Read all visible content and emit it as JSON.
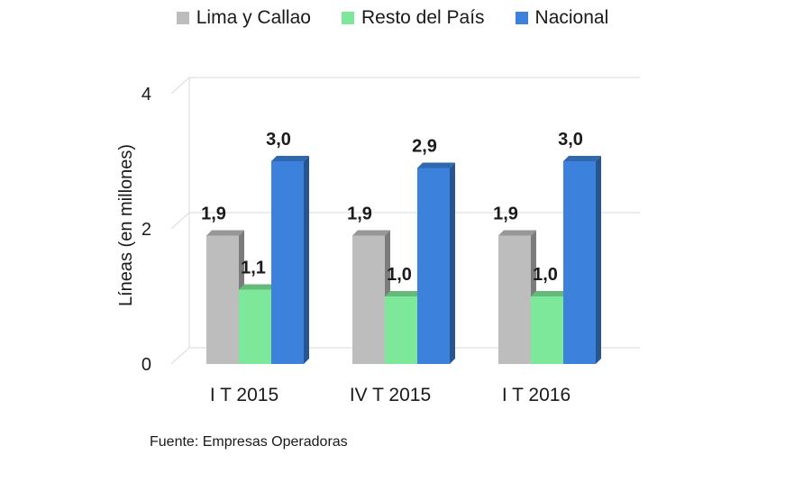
{
  "chart_data": {
    "type": "bar",
    "categories": [
      "I T 2015",
      "IV T 2015",
      "I T 2016"
    ],
    "series": [
      {
        "name": "Lima y Callao",
        "color": "#bdbdbd",
        "values": [
          1.9,
          1.9,
          1.9
        ],
        "labels": [
          "1,9",
          "1,9",
          "1,9"
        ]
      },
      {
        "name": "Resto del País",
        "color": "#7ee89a",
        "values": [
          1.1,
          1.0,
          1.0
        ],
        "labels": [
          "1,1",
          "1,0",
          "1,0"
        ]
      },
      {
        "name": "Nacional",
        "color": "#3c82dc",
        "values": [
          3.0,
          2.9,
          3.0
        ],
        "labels": [
          "3,0",
          "2,9",
          "3,0"
        ]
      }
    ],
    "ylabel": "Líneas (en millones)",
    "ylim": [
      0,
      4
    ],
    "yticks": [
      0,
      2,
      4
    ],
    "ytick_labels": [
      "0",
      "2",
      "4"
    ],
    "grid": true,
    "legend_position": "top"
  },
  "source": "Fuente: Empresas Operadoras"
}
